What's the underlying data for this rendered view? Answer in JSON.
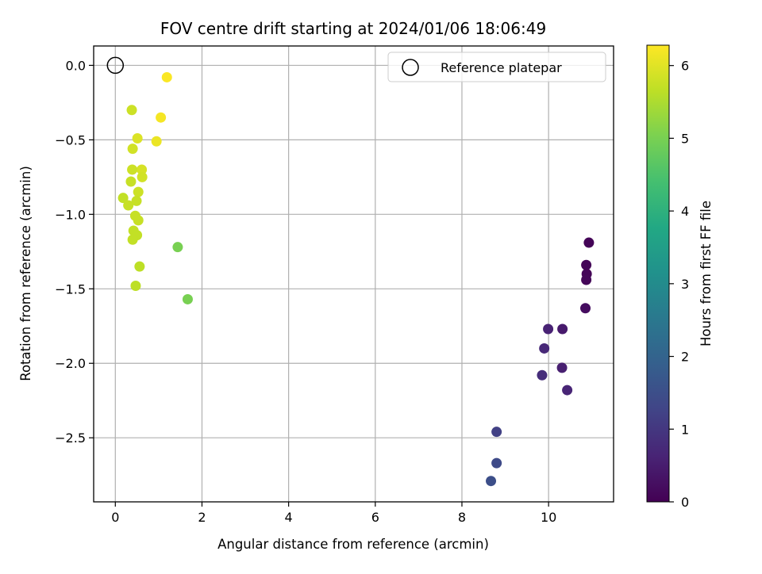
{
  "chart_data": {
    "type": "scatter",
    "title": "FOV centre drift starting at 2024/01/06 18:06:49",
    "xlabel": "Angular distance from reference (arcmin)",
    "ylabel": "Rotation from reference (arcmin)",
    "xlim": [
      -0.5,
      11.5
    ],
    "ylim": [
      -2.93,
      0.13
    ],
    "xticks": [
      0,
      2,
      4,
      6,
      8,
      10
    ],
    "yticks": [
      0.0,
      -0.5,
      -1.0,
      -1.5,
      -2.0,
      -2.5
    ],
    "xtick_labels": [
      "0",
      "2",
      "4",
      "6",
      "8",
      "10"
    ],
    "ytick_labels": [
      "0.0",
      "−0.5",
      "−1.0",
      "−1.5",
      "−2.0",
      "−2.5"
    ],
    "grid": true,
    "legend": {
      "position": "top-right",
      "entries": [
        "Reference platepar"
      ]
    },
    "reference": {
      "x": 0,
      "y": 0,
      "marker": "hollow-circle"
    },
    "colorbar": {
      "label": "Hours from first FF file",
      "colormap": "viridis",
      "range": [
        0,
        6.28
      ],
      "ticks": [
        0,
        1,
        2,
        3,
        4,
        5,
        6
      ],
      "tick_labels": [
        "0",
        "1",
        "2",
        "3",
        "4",
        "5",
        "6"
      ]
    },
    "points": [
      {
        "x": 10.93,
        "y": -1.19,
        "t": 0.05
      },
      {
        "x": 10.87,
        "y": -1.34,
        "t": 0.07
      },
      {
        "x": 10.88,
        "y": -1.4,
        "t": 0.08
      },
      {
        "x": 10.87,
        "y": -1.44,
        "t": 0.1
      },
      {
        "x": 10.85,
        "y": -1.63,
        "t": 0.2
      },
      {
        "x": 10.32,
        "y": -1.77,
        "t": 0.45
      },
      {
        "x": 9.99,
        "y": -1.77,
        "t": 0.6
      },
      {
        "x": 9.9,
        "y": -1.9,
        "t": 0.7
      },
      {
        "x": 10.31,
        "y": -2.03,
        "t": 0.55
      },
      {
        "x": 9.85,
        "y": -2.08,
        "t": 0.8
      },
      {
        "x": 10.43,
        "y": -2.18,
        "t": 0.65
      },
      {
        "x": 8.8,
        "y": -2.46,
        "t": 1.2
      },
      {
        "x": 8.8,
        "y": -2.67,
        "t": 1.4
      },
      {
        "x": 8.67,
        "y": -2.79,
        "t": 1.5
      },
      {
        "x": 1.19,
        "y": -0.08,
        "t": 6.25
      },
      {
        "x": 0.38,
        "y": -0.3,
        "t": 5.8
      },
      {
        "x": 1.05,
        "y": -0.35,
        "t": 6.2
      },
      {
        "x": 0.51,
        "y": -0.49,
        "t": 5.95
      },
      {
        "x": 0.95,
        "y": -0.51,
        "t": 6.1
      },
      {
        "x": 0.4,
        "y": -0.56,
        "t": 5.85
      },
      {
        "x": 0.61,
        "y": -0.7,
        "t": 5.9
      },
      {
        "x": 0.39,
        "y": -0.7,
        "t": 5.8
      },
      {
        "x": 0.62,
        "y": -0.75,
        "t": 5.85
      },
      {
        "x": 0.36,
        "y": -0.78,
        "t": 5.75
      },
      {
        "x": 0.53,
        "y": -0.85,
        "t": 5.8
      },
      {
        "x": 0.18,
        "y": -0.89,
        "t": 5.7
      },
      {
        "x": 0.49,
        "y": -0.91,
        "t": 5.75
      },
      {
        "x": 0.3,
        "y": -0.94,
        "t": 5.75
      },
      {
        "x": 0.46,
        "y": -1.01,
        "t": 5.75
      },
      {
        "x": 0.53,
        "y": -1.04,
        "t": 5.75
      },
      {
        "x": 0.42,
        "y": -1.11,
        "t": 5.7
      },
      {
        "x": 0.5,
        "y": -1.14,
        "t": 5.7
      },
      {
        "x": 0.4,
        "y": -1.17,
        "t": 5.7
      },
      {
        "x": 1.44,
        "y": -1.22,
        "t": 5.0
      },
      {
        "x": 0.56,
        "y": -1.35,
        "t": 5.65
      },
      {
        "x": 0.47,
        "y": -1.48,
        "t": 5.65
      },
      {
        "x": 1.67,
        "y": -1.57,
        "t": 5.0
      }
    ]
  }
}
